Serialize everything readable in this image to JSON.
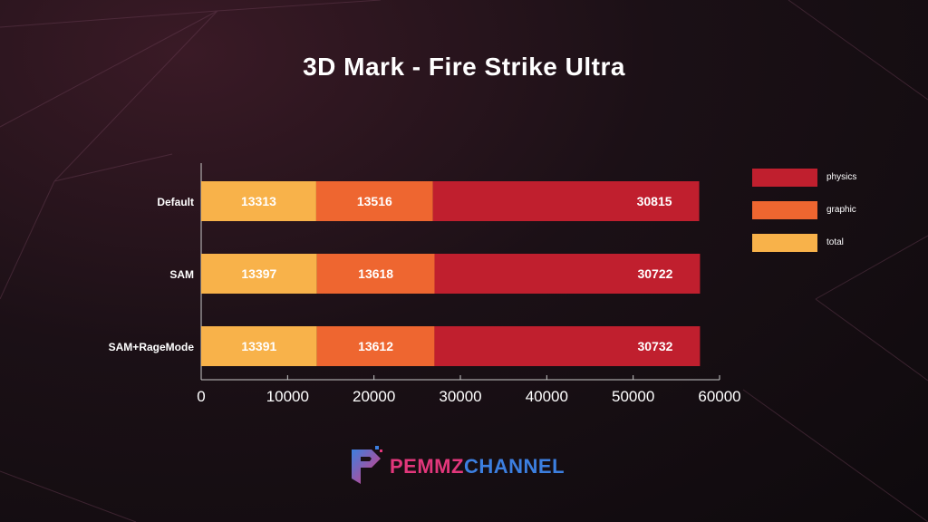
{
  "chart_data": {
    "type": "bar",
    "orientation": "horizontal",
    "stacked": true,
    "title": "3D Mark - Fire Strike Ultra",
    "categories": [
      "Default",
      "SAM",
      "SAM+RageMode"
    ],
    "series": [
      {
        "name": "total",
        "color": "#f8b24a",
        "values": [
          13313,
          13397,
          13391
        ]
      },
      {
        "name": "graphic",
        "color": "#ee6630",
        "values": [
          13516,
          13618,
          13612
        ]
      },
      {
        "name": "physics",
        "color": "#c01f2e",
        "values": [
          30815,
          30722,
          30732
        ]
      }
    ],
    "legend_order": [
      "physics",
      "graphic",
      "total"
    ],
    "xlim": [
      0,
      60000
    ],
    "xticks": [
      "0",
      "10000",
      "20000",
      "30000",
      "40000",
      "50000",
      "60000"
    ],
    "xlabel": "",
    "ylabel": "",
    "grid": false,
    "legend_position": "right"
  },
  "legend": [
    {
      "label": "physics",
      "color": "#c01f2e"
    },
    {
      "label": "graphic",
      "color": "#ee6630"
    },
    {
      "label": "total",
      "color": "#f8b24a"
    }
  ],
  "logo": {
    "part1": "PEMMZ",
    "part2": "CHANNEL",
    "icon": "pemmz-logo-icon"
  }
}
